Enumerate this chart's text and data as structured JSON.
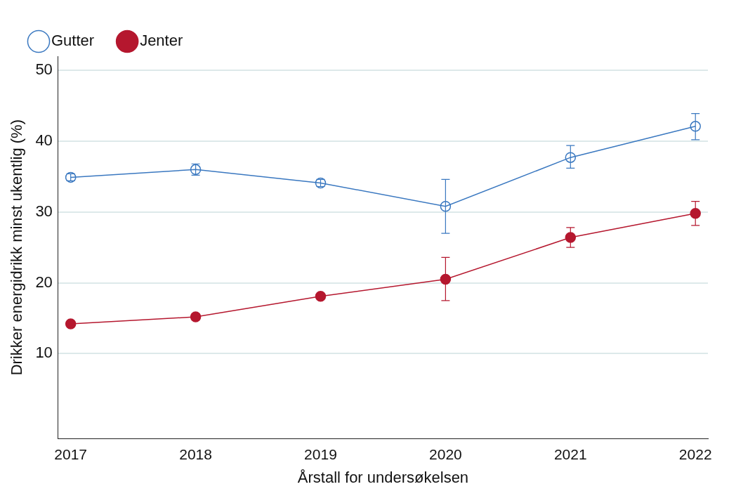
{
  "chart_data": {
    "type": "line",
    "xlabel": "Årstall for undersøkelsen",
    "ylabel": "Drikker energidrikk minst ukentlig (%)",
    "x": [
      2017,
      2018,
      2019,
      2020,
      2021,
      2022
    ],
    "xlim": [
      2016.9,
      2022.1
    ],
    "xticks": [
      2017,
      2018,
      2019,
      2020,
      2021,
      2022
    ],
    "ylim": [
      -2,
      52
    ],
    "yticks": [
      10,
      20,
      30,
      40,
      50
    ],
    "grid": "y",
    "legend": "top left",
    "marker": "circle",
    "line_style": "solid",
    "series": [
      {
        "name": "Gutter",
        "color": "#3a78c0",
        "values": [
          34.9,
          36.0,
          34.1,
          30.8,
          37.7,
          42.1
        ],
        "errors": [
          0.5,
          0.8,
          0.5,
          [
            27.0,
            34.6
          ],
          [
            36.2,
            39.4
          ],
          [
            40.2,
            43.9
          ]
        ]
      },
      {
        "name": "Jenter",
        "color": "#b5172e",
        "values": [
          14.2,
          15.2,
          18.1,
          20.5,
          26.4,
          29.8
        ],
        "errors": [
          0.3,
          0.4,
          0.3,
          [
            17.5,
            23.6
          ],
          [
            25.0,
            27.8
          ],
          [
            28.1,
            31.5
          ]
        ]
      }
    ]
  }
}
